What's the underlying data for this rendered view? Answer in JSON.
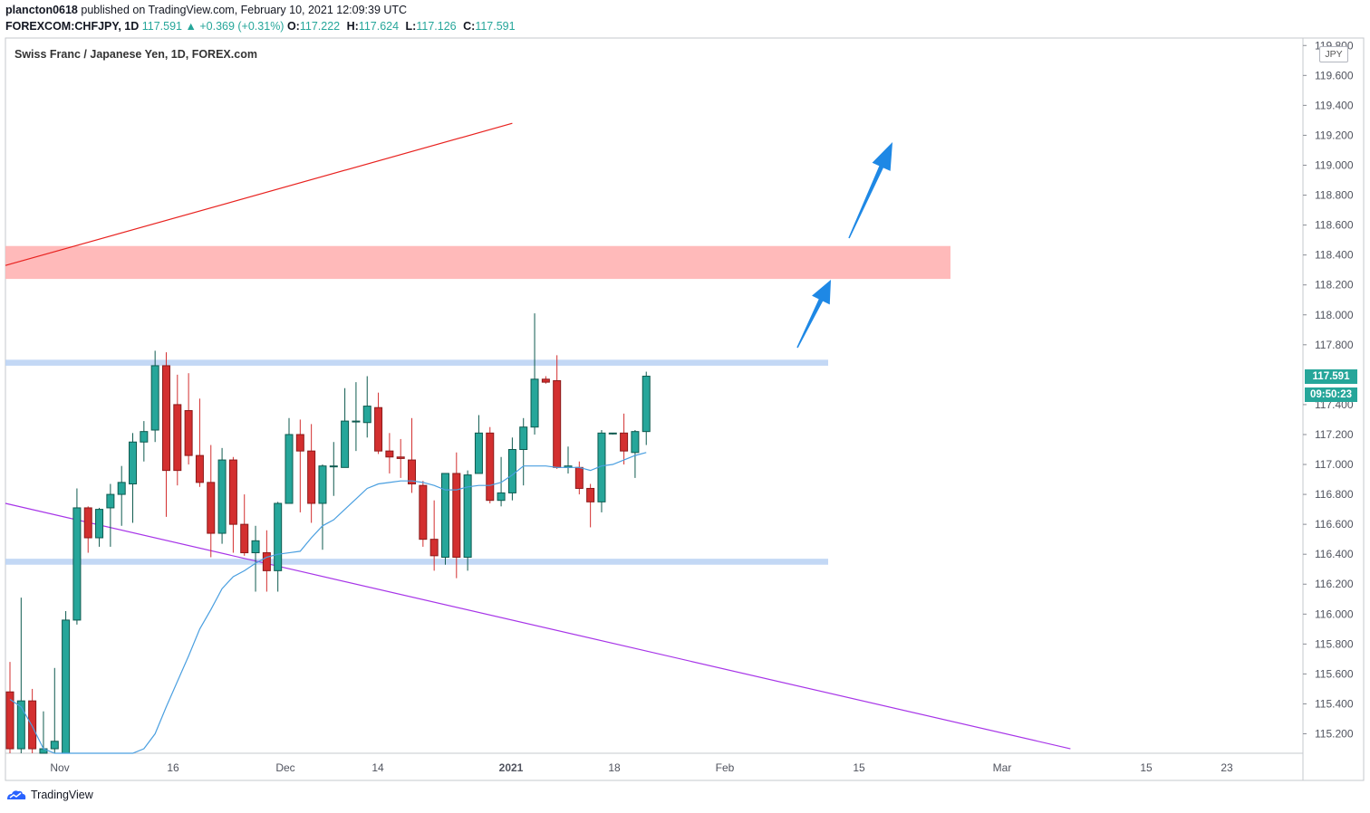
{
  "header": {
    "author": "plancton0618",
    "published_text": "published on TradingView.com, February 10, 2021 12:09:39 UTC",
    "symbol": "FOREXCOM:CHFJPY, 1D",
    "last_price": "117.591",
    "change_text": "+0.369 (+0.31%)",
    "o_label": "O:",
    "o_value": "117.222",
    "h_label": "H:",
    "h_value": "117.624",
    "l_label": "L:",
    "l_value": "117.126",
    "c_label": "C:",
    "c_value": "117.591"
  },
  "legend": {
    "title": "Swiss Franc / Japanese Yen, 1D, FOREX.com"
  },
  "currency_badge": "JPY",
  "price_tag": "117.591",
  "countdown_tag": "09:50:23",
  "footer": {
    "brand": "TradingView"
  },
  "colors": {
    "up": "#26a69a",
    "up_dark": "#0e5a4f",
    "down": "#d32f2f",
    "down_dark": "#8b1a1a",
    "ma": "#4a9fe0",
    "resistance_zone": "#ffb3b3",
    "range_band": "#b8d1f3",
    "red_trend": "#e8221f",
    "purple_trend": "#a735e8",
    "arrow": "#1e88e5"
  },
  "chart_data": {
    "type": "candlestick",
    "title": "Swiss Franc / Japanese Yen, 1D, FOREX.com",
    "ylim": [
      115.07,
      119.85
    ],
    "y_ticks": [
      "119.800",
      "119.600",
      "119.400",
      "119.200",
      "119.000",
      "118.800",
      "118.600",
      "118.400",
      "118.200",
      "118.000",
      "117.800",
      "117.400",
      "117.200",
      "117.000",
      "116.800",
      "116.600",
      "116.400",
      "116.200",
      "116.000",
      "115.800",
      "115.600",
      "115.400",
      "115.200"
    ],
    "x_ticks": [
      "Nov",
      "16",
      "Dec",
      "14",
      "2021",
      "18",
      "Feb",
      "15",
      "Mar",
      "15",
      "23"
    ],
    "candles": [
      {
        "o": 115.48,
        "h": 115.68,
        "l": 115.05,
        "c": 115.1
      },
      {
        "o": 115.1,
        "h": 116.11,
        "l": 115.05,
        "c": 115.42
      },
      {
        "o": 115.42,
        "h": 115.5,
        "l": 115.05,
        "c": 115.1
      },
      {
        "o": 115.05,
        "h": 115.35,
        "l": 115.05,
        "c": 115.1
      },
      {
        "o": 115.1,
        "h": 115.64,
        "l": 115.05,
        "c": 115.15
      },
      {
        "o": 115.05,
        "h": 116.02,
        "l": 115.05,
        "c": 115.96
      },
      {
        "o": 115.96,
        "h": 116.84,
        "l": 115.93,
        "c": 116.71
      },
      {
        "o": 116.71,
        "h": 116.72,
        "l": 116.41,
        "c": 116.51
      },
      {
        "o": 116.51,
        "h": 116.71,
        "l": 116.45,
        "c": 116.7
      },
      {
        "o": 116.71,
        "h": 116.87,
        "l": 116.45,
        "c": 116.8
      },
      {
        "o": 116.8,
        "h": 116.99,
        "l": 116.59,
        "c": 116.88
      },
      {
        "o": 116.87,
        "h": 117.21,
        "l": 116.61,
        "c": 117.15
      },
      {
        "o": 117.15,
        "h": 117.29,
        "l": 117.02,
        "c": 117.22
      },
      {
        "o": 117.23,
        "h": 117.76,
        "l": 117.15,
        "c": 117.66
      },
      {
        "o": 117.66,
        "h": 117.75,
        "l": 116.65,
        "c": 116.96
      },
      {
        "o": 117.4,
        "h": 117.6,
        "l": 116.86,
        "c": 116.96
      },
      {
        "o": 117.36,
        "h": 117.61,
        "l": 117.0,
        "c": 117.06
      },
      {
        "o": 117.06,
        "h": 117.44,
        "l": 116.85,
        "c": 116.88
      },
      {
        "o": 116.88,
        "h": 117.13,
        "l": 116.38,
        "c": 116.54
      },
      {
        "o": 116.54,
        "h": 117.11,
        "l": 116.47,
        "c": 117.03
      },
      {
        "o": 117.03,
        "h": 117.05,
        "l": 116.41,
        "c": 116.6
      },
      {
        "o": 116.6,
        "h": 116.8,
        "l": 116.39,
        "c": 116.41
      },
      {
        "o": 116.41,
        "h": 116.59,
        "l": 116.15,
        "c": 116.49
      },
      {
        "o": 116.41,
        "h": 116.56,
        "l": 116.15,
        "c": 116.29
      },
      {
        "o": 116.29,
        "h": 116.75,
        "l": 116.15,
        "c": 116.74
      },
      {
        "o": 116.74,
        "h": 117.31,
        "l": 116.74,
        "c": 117.2
      },
      {
        "o": 117.2,
        "h": 117.3,
        "l": 116.68,
        "c": 117.09
      },
      {
        "o": 117.09,
        "h": 117.27,
        "l": 116.61,
        "c": 116.74
      },
      {
        "o": 116.74,
        "h": 117.0,
        "l": 116.43,
        "c": 116.99
      },
      {
        "o": 116.99,
        "h": 117.15,
        "l": 116.79,
        "c": 116.99
      },
      {
        "o": 116.98,
        "h": 117.51,
        "l": 116.98,
        "c": 117.29
      },
      {
        "o": 117.29,
        "h": 117.55,
        "l": 117.09,
        "c": 117.29
      },
      {
        "o": 117.28,
        "h": 117.59,
        "l": 117.18,
        "c": 117.39
      },
      {
        "o": 117.38,
        "h": 117.48,
        "l": 117.07,
        "c": 117.09
      },
      {
        "o": 117.09,
        "h": 117.21,
        "l": 116.94,
        "c": 117.05
      },
      {
        "o": 117.05,
        "h": 117.17,
        "l": 116.91,
        "c": 117.04
      },
      {
        "o": 117.03,
        "h": 117.31,
        "l": 116.81,
        "c": 116.87
      },
      {
        "o": 116.86,
        "h": 116.89,
        "l": 116.45,
        "c": 116.5
      },
      {
        "o": 116.5,
        "h": 116.76,
        "l": 116.29,
        "c": 116.39
      },
      {
        "o": 116.38,
        "h": 116.93,
        "l": 116.33,
        "c": 116.94
      },
      {
        "o": 116.94,
        "h": 117.08,
        "l": 116.24,
        "c": 116.38
      },
      {
        "o": 116.38,
        "h": 116.96,
        "l": 116.29,
        "c": 116.93
      },
      {
        "o": 116.94,
        "h": 117.33,
        "l": 116.94,
        "c": 117.21
      },
      {
        "o": 117.21,
        "h": 117.25,
        "l": 116.74,
        "c": 116.76
      },
      {
        "o": 116.76,
        "h": 117.05,
        "l": 116.72,
        "c": 116.81
      },
      {
        "o": 116.81,
        "h": 117.18,
        "l": 116.76,
        "c": 117.1
      },
      {
        "o": 117.1,
        "h": 117.31,
        "l": 116.86,
        "c": 117.25
      },
      {
        "o": 117.25,
        "h": 118.01,
        "l": 117.2,
        "c": 117.57
      },
      {
        "o": 117.57,
        "h": 117.59,
        "l": 117.54,
        "c": 117.55
      },
      {
        "o": 117.56,
        "h": 117.73,
        "l": 116.97,
        "c": 116.98
      },
      {
        "o": 116.98,
        "h": 117.12,
        "l": 116.94,
        "c": 116.99
      },
      {
        "o": 116.98,
        "h": 117.02,
        "l": 116.8,
        "c": 116.84
      },
      {
        "o": 116.84,
        "h": 116.87,
        "l": 116.58,
        "c": 116.75
      },
      {
        "o": 116.75,
        "h": 117.23,
        "l": 116.68,
        "c": 117.21
      },
      {
        "o": 117.21,
        "h": 117.21,
        "l": 117.2,
        "c": 117.21
      },
      {
        "o": 117.21,
        "h": 117.34,
        "l": 117.0,
        "c": 117.09
      },
      {
        "o": 117.08,
        "h": 117.23,
        "l": 116.91,
        "c": 117.22
      },
      {
        "o": 117.22,
        "h": 117.62,
        "l": 117.13,
        "c": 117.59
      }
    ],
    "moving_average": [
      115.43,
      115.38,
      115.25,
      115.1,
      115.0,
      115.0,
      115.0,
      115.0,
      115.0,
      115.0,
      115.02,
      115.05,
      115.1,
      115.2,
      115.38,
      115.55,
      115.72,
      115.9,
      116.03,
      116.17,
      116.25,
      116.29,
      116.34,
      116.38,
      116.4,
      116.41,
      116.42,
      116.51,
      116.59,
      116.63,
      116.7,
      116.77,
      116.84,
      116.87,
      116.88,
      116.89,
      116.89,
      116.88,
      116.86,
      116.83,
      116.83,
      116.85,
      116.86,
      116.86,
      116.88,
      116.93,
      116.99,
      116.99,
      116.99,
      116.98,
      116.98,
      116.98,
      116.96,
      116.99,
      117.0,
      117.03,
      117.06,
      117.08
    ],
    "zones": [
      {
        "name": "resistance-zone",
        "from": 118.24,
        "to": 118.46
      },
      {
        "name": "range-top",
        "from": 117.66,
        "to": 117.7
      },
      {
        "name": "range-bottom",
        "from": 116.33,
        "to": 116.37
      }
    ],
    "trendlines": [
      {
        "name": "red-trendline",
        "from_bar": 0,
        "from_price": 118.33,
        "to_bar": 45,
        "to_price": 119.28
      },
      {
        "name": "purple-trendline",
        "from_bar": 0,
        "from_price": 116.74,
        "to_bar": 95,
        "to_price": 115.1
      }
    ]
  }
}
